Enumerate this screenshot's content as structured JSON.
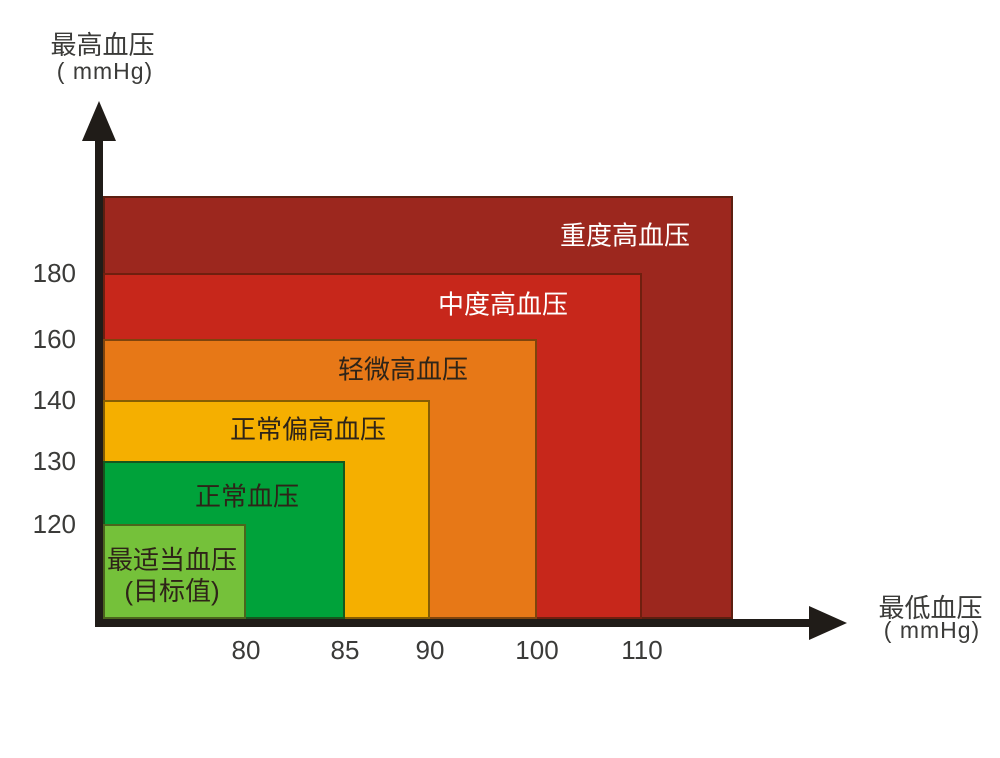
{
  "chart_data": {
    "type": "area",
    "title": "",
    "x_axis": {
      "label": "最低血压",
      "unit": "( mmHg)",
      "ticks": [
        80,
        85,
        90,
        100,
        110
      ]
    },
    "y_axis": {
      "label": "最高血压",
      "unit": "( mmHg)",
      "ticks": [
        180,
        160,
        140,
        130,
        120
      ]
    },
    "zones": [
      {
        "name": "severe-hypertension",
        "label_lines": [
          "重度高血压"
        ],
        "systolic_min": 180,
        "diastolic_min": 110,
        "systolic_max": null,
        "diastolic_max": null,
        "color": "#9C271E",
        "label_color": "#FFFFFF"
      },
      {
        "name": "moderate-hypertension",
        "label_lines": [
          "中度高血压"
        ],
        "systolic_max": 180,
        "diastolic_max": 110,
        "color": "#C7271B",
        "label_color": "#FFFFFF"
      },
      {
        "name": "mild-hypertension",
        "label_lines": [
          "轻微高血压"
        ],
        "systolic_max": 160,
        "diastolic_max": 100,
        "color": "#E77817",
        "label_color": "#2E2418"
      },
      {
        "name": "high-normal",
        "label_lines": [
          "正常偏高血压"
        ],
        "systolic_max": 140,
        "diastolic_max": 90,
        "color": "#F5AF00",
        "label_color": "#2E2418"
      },
      {
        "name": "normal",
        "label_lines": [
          "正常血压"
        ],
        "systolic_max": 130,
        "diastolic_max": 85,
        "color": "#00A23A",
        "label_color": "#2E2418"
      },
      {
        "name": "optimal-target",
        "label_lines": [
          "最适当血压",
          "(目标值)"
        ],
        "systolic_max": 120,
        "diastolic_max": 80,
        "color": "#75C13A",
        "label_color": "#2E2418"
      }
    ]
  }
}
